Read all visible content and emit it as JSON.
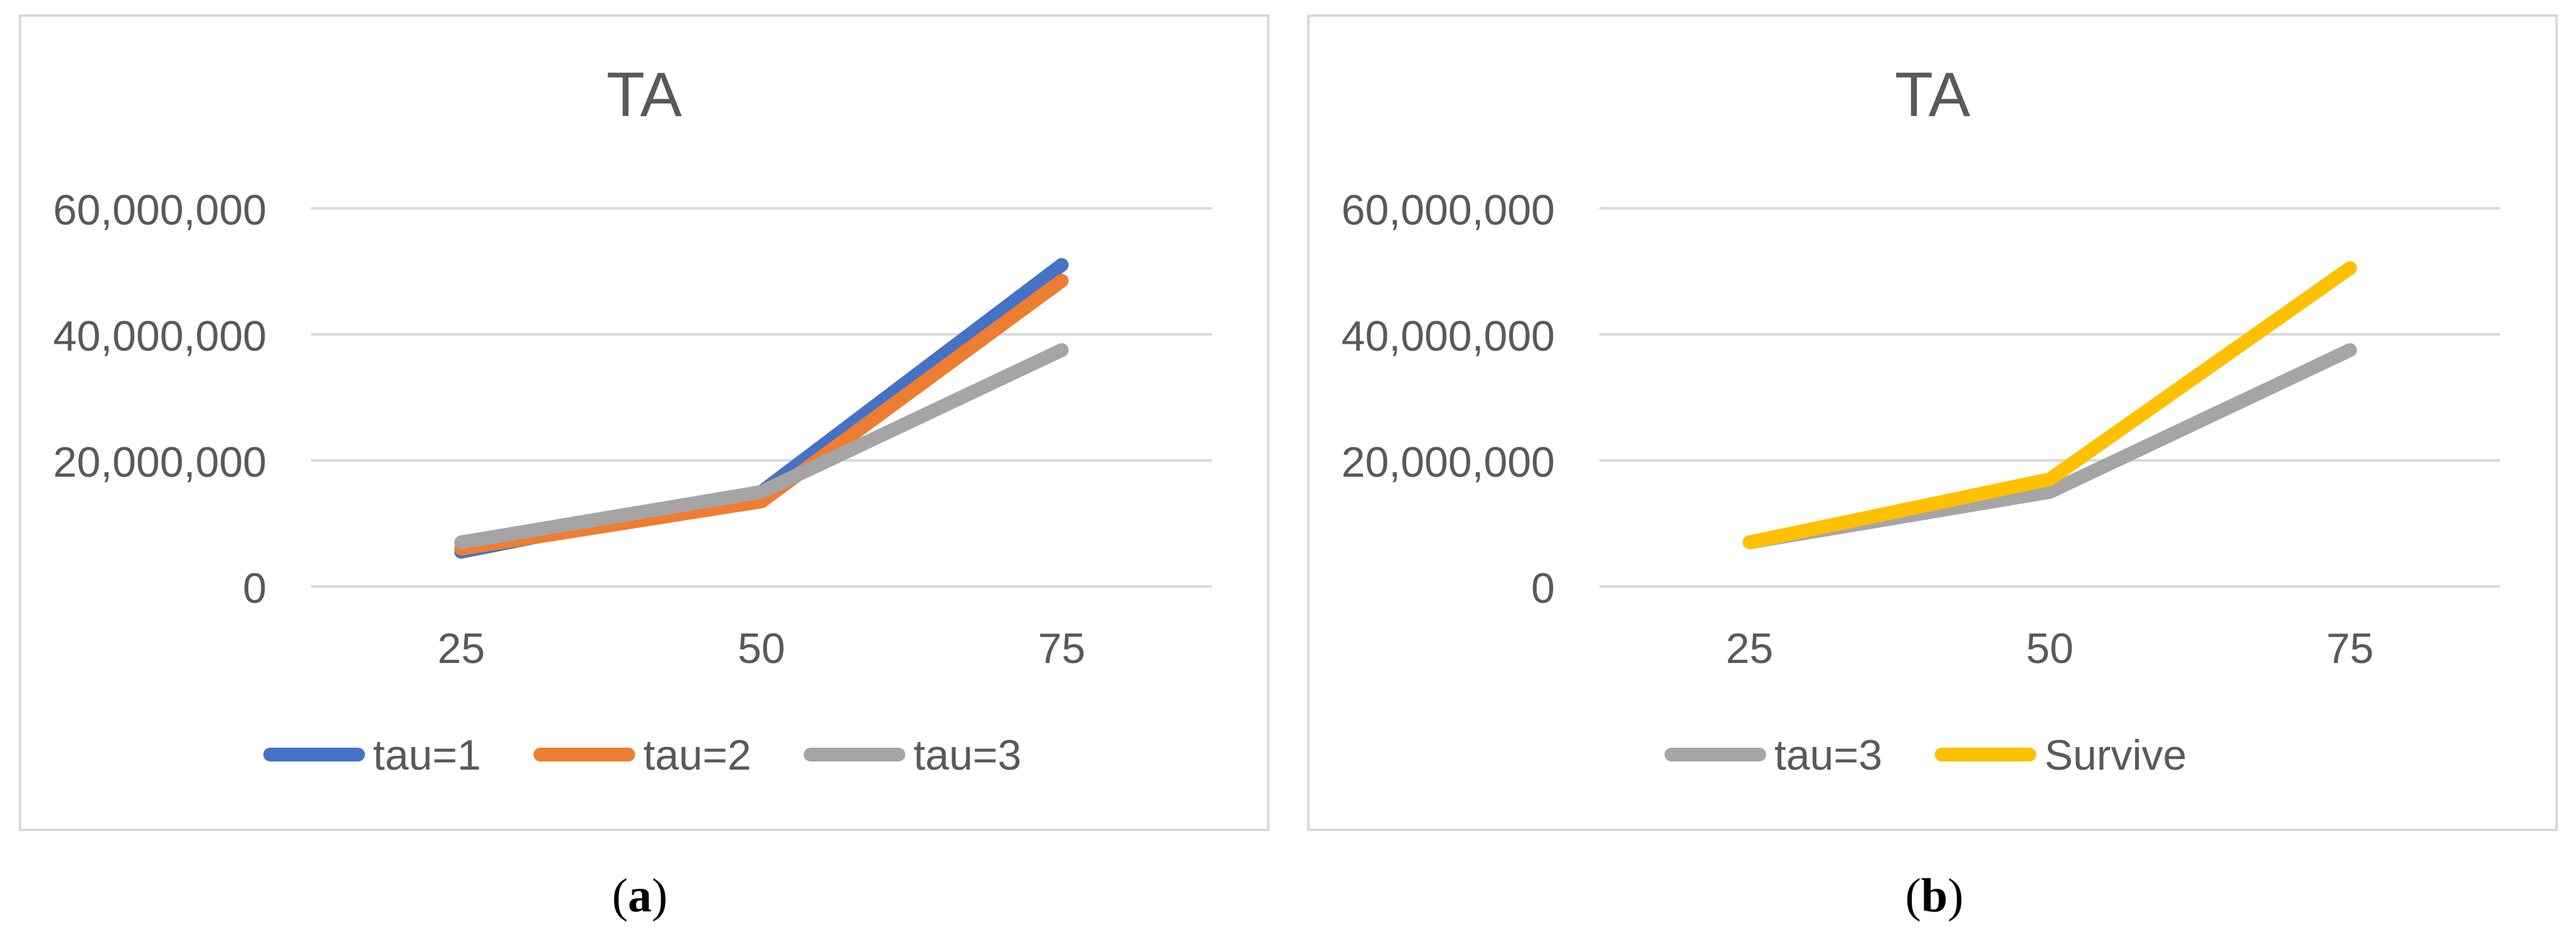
{
  "chart_data": [
    {
      "type": "line",
      "panel": "a",
      "title": "TA",
      "categories": [
        "25",
        "50",
        "75"
      ],
      "y_ticks": [
        "60,000,000",
        "40,000,000",
        "20,000,000",
        "0"
      ],
      "ylim": [
        0,
        60000000
      ],
      "grid": true,
      "legend_position": "bottom",
      "series": [
        {
          "name": "tau=1",
          "color": "#4472C4",
          "values": [
            5500000,
            15000000,
            51000000
          ]
        },
        {
          "name": "tau=2",
          "color": "#ED7D31",
          "values": [
            6000000,
            13500000,
            48500000
          ]
        },
        {
          "name": "tau=3",
          "color": "#A5A5A5",
          "values": [
            7000000,
            15000000,
            37500000
          ]
        }
      ]
    },
    {
      "type": "line",
      "panel": "b",
      "title": "TA",
      "categories": [
        "25",
        "50",
        "75"
      ],
      "y_ticks": [
        "60,000,000",
        "40,000,000",
        "20,000,000",
        "0"
      ],
      "ylim": [
        0,
        60000000
      ],
      "grid": true,
      "legend_position": "bottom",
      "series": [
        {
          "name": "tau=3",
          "color": "#A5A5A5",
          "values": [
            7000000,
            15000000,
            37500000
          ]
        },
        {
          "name": "Survive",
          "color": "#FFC000",
          "values": [
            7000000,
            17000000,
            50500000
          ]
        }
      ]
    }
  ],
  "captions": [
    {
      "open": "(",
      "letter": "a",
      "close": ")"
    },
    {
      "open": "(",
      "letter": "b",
      "close": ")"
    }
  ]
}
